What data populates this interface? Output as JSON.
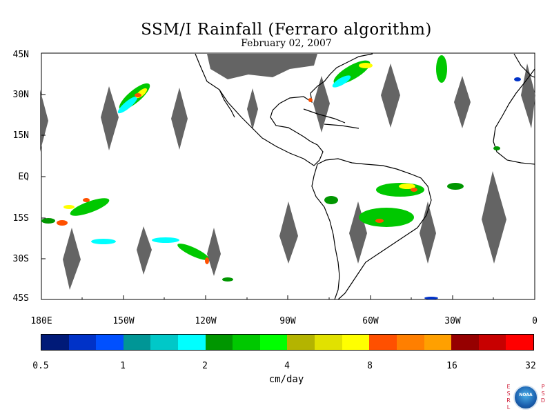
{
  "title": "SSM/I Rainfall (Ferraro algorithm)",
  "subtitle": "February 02, 2007",
  "lat_labels": [
    "45N",
    "30N",
    "15N",
    "EQ",
    "15S",
    "30S",
    "45S"
  ],
  "lon_labels": [
    "180E",
    "150W",
    "120W",
    "90W",
    "60W",
    "30W",
    "0"
  ],
  "colorbar": {
    "colors": [
      "#001a78",
      "#0032c8",
      "#0050ff",
      "#009696",
      "#00c8c8",
      "#00ffff",
      "#009600",
      "#00c800",
      "#00ff00",
      "#b4b400",
      "#e1e100",
      "#ffff00",
      "#ff5000",
      "#ff7f00",
      "#ffa000",
      "#960000",
      "#c80000",
      "#ff0000"
    ],
    "ticks": [
      "0.5",
      "1",
      "2",
      "4",
      "8",
      "16",
      "32"
    ],
    "units": "cm/day"
  },
  "logo": {
    "left_letters": "E S R L",
    "right_letters": "P S D",
    "text": "NOAA"
  },
  "colors": {
    "no_data": "#646464",
    "coastline": "#000000"
  }
}
